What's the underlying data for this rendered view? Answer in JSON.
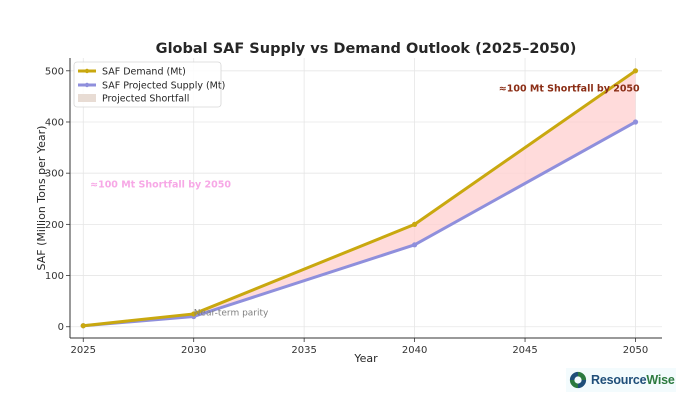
{
  "chart_data": {
    "type": "line",
    "title": "Global SAF Supply vs Demand Outlook (2025–2050)",
    "xlabel": "Year",
    "ylabel": "SAF (Million Tons per Year)",
    "x": [
      2025,
      2030,
      2040,
      2050
    ],
    "xticks": [
      2025,
      2030,
      2035,
      2040,
      2045,
      2050
    ],
    "yticks": [
      0,
      100,
      200,
      300,
      400,
      500
    ],
    "xlim": [
      2024.4,
      2051.2
    ],
    "ylim": [
      -22,
      525
    ],
    "grid": true,
    "legend_position": "top-left",
    "series": [
      {
        "name": "SAF Demand (Mt)",
        "values": [
          2,
          25,
          200,
          500
        ],
        "color": "#c9a80f"
      },
      {
        "name": "SAF Projected Supply (Mt)",
        "values": [
          2,
          20,
          160,
          400
        ],
        "color": "#8f8fdc"
      }
    ],
    "fill": {
      "name": "Projected Shortfall",
      "between": [
        "SAF Demand (Mt)",
        "SAF Projected Supply (Mt)"
      ],
      "color": "#ffcfcf"
    },
    "annotations": [
      {
        "id": "shortfall-main",
        "text": "≈100 Mt Shortfall by 2050",
        "x": 2047,
        "y": 465
      },
      {
        "id": "shortfall-ghost",
        "text": "≈100 Mt Shortfall by 2050",
        "x": 2028.5,
        "y": 278
      },
      {
        "id": "parity",
        "text": "Near-term parity",
        "x": 2030,
        "y": 28
      }
    ]
  },
  "branding": {
    "logo_text_1": "Resource",
    "logo_text_2": "Wise",
    "logo_icon": "resourcewise-logo-icon"
  }
}
